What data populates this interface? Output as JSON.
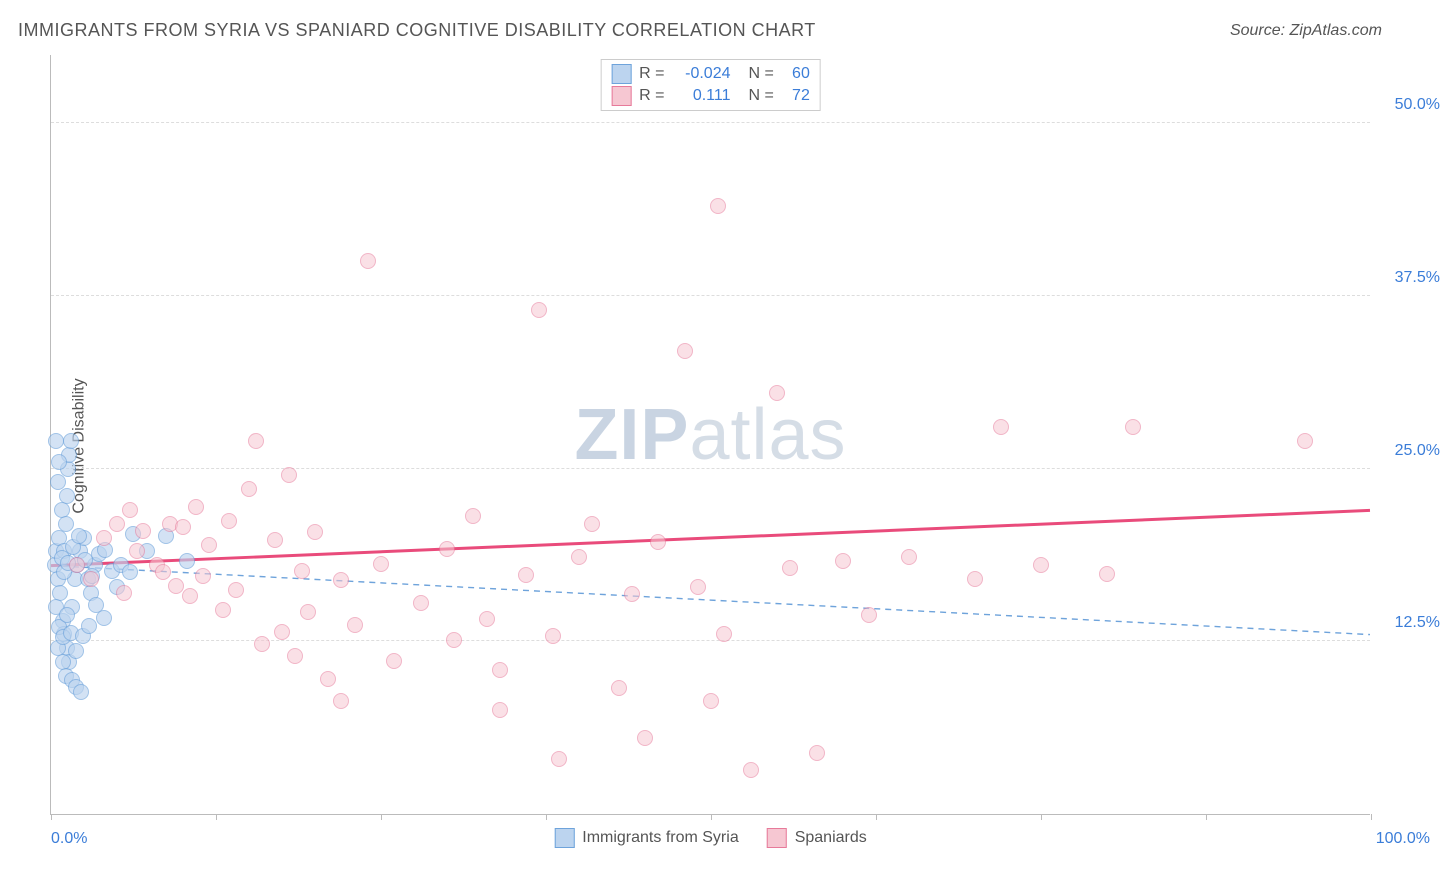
{
  "title": "IMMIGRANTS FROM SYRIA VS SPANIARD COGNITIVE DISABILITY CORRELATION CHART",
  "source": "Source: ZipAtlas.com",
  "ylabel": "Cognitive Disability",
  "watermark_bold": "ZIP",
  "watermark_rest": "atlas",
  "chart": {
    "type": "scatter",
    "xlim": [
      0,
      100
    ],
    "ylim": [
      0,
      55
    ],
    "x_min_label": "0.0%",
    "x_max_label": "100.0%",
    "x_label_color": "#3b7dd8",
    "y_ticks": [
      12.5,
      25.0,
      37.5,
      50.0
    ],
    "y_tick_labels": [
      "12.5%",
      "25.0%",
      "37.5%",
      "50.0%"
    ],
    "y_tick_color": "#3b7dd8",
    "x_tick_positions": [
      0,
      12.5,
      25,
      37.5,
      50,
      62.5,
      75,
      87.5,
      100
    ],
    "grid_color": "#dddddd",
    "background_color": "#ffffff",
    "marker_radius": 8,
    "series": [
      {
        "name": "Immigrants from Syria",
        "fill": "#bcd4ef",
        "stroke": "#6ea3db",
        "fill_opacity": 0.65,
        "R": "-0.024",
        "N": "60",
        "trend": {
          "y_at_x0": 18.0,
          "y_at_x100": 13.0,
          "width": 1.4,
          "dash": "6,5",
          "color": "#6ea3db"
        },
        "points": [
          [
            0.3,
            18
          ],
          [
            0.4,
            19
          ],
          [
            0.5,
            17
          ],
          [
            0.6,
            20
          ],
          [
            0.7,
            16
          ],
          [
            0.8,
            22
          ],
          [
            0.9,
            14
          ],
          [
            1.0,
            19
          ],
          [
            1.1,
            21
          ],
          [
            1.2,
            23
          ],
          [
            1.3,
            25
          ],
          [
            1.4,
            26
          ],
          [
            1.5,
            27
          ],
          [
            1.0,
            13
          ],
          [
            1.2,
            12
          ],
          [
            1.4,
            11
          ],
          [
            1.6,
            15
          ],
          [
            1.8,
            17
          ],
          [
            2.0,
            18
          ],
          [
            2.2,
            19
          ],
          [
            2.5,
            20
          ],
          [
            2.8,
            17
          ],
          [
            3.0,
            16
          ],
          [
            3.3,
            18
          ],
          [
            0.5,
            24
          ],
          [
            0.6,
            25.5
          ],
          [
            0.4,
            15
          ],
          [
            0.5,
            12
          ],
          [
            0.9,
            11
          ],
          [
            1.1,
            10
          ],
          [
            1.6,
            9.7
          ],
          [
            1.9,
            9.2
          ],
          [
            2.3,
            8.8
          ],
          [
            0.4,
            27
          ],
          [
            0.8,
            18.5
          ],
          [
            1.0,
            17.5
          ],
          [
            1.3,
            18.2
          ],
          [
            1.7,
            19.3
          ],
          [
            2.1,
            20.1
          ],
          [
            2.6,
            18.4
          ],
          [
            3.1,
            17.2
          ],
          [
            3.6,
            18.8
          ],
          [
            4.1,
            19.1
          ],
          [
            4.6,
            17.6
          ],
          [
            5.3,
            18.0
          ],
          [
            6.2,
            20.3
          ],
          [
            0.6,
            13.5
          ],
          [
            0.9,
            12.8
          ],
          [
            1.2,
            14.4
          ],
          [
            1.5,
            13.1
          ],
          [
            1.9,
            11.8
          ],
          [
            2.4,
            12.9
          ],
          [
            2.9,
            13.6
          ],
          [
            3.4,
            15.1
          ],
          [
            4.0,
            14.2
          ],
          [
            5.0,
            16.4
          ],
          [
            6.0,
            17.5
          ],
          [
            7.3,
            19.0
          ],
          [
            8.7,
            20.1
          ],
          [
            10.3,
            18.3
          ]
        ]
      },
      {
        "name": "Spaniards",
        "fill": "#f6c7d2",
        "stroke": "#e77a9a",
        "fill_opacity": 0.55,
        "R": "0.111",
        "N": "72",
        "trend": {
          "y_at_x0": 18.0,
          "y_at_x100": 22.0,
          "width": 3,
          "dash": null,
          "color": "#e94b7b"
        },
        "points": [
          [
            2,
            18
          ],
          [
            3,
            17
          ],
          [
            4,
            20
          ],
          [
            5,
            21
          ],
          [
            5.5,
            16
          ],
          [
            6,
            22
          ],
          [
            6.5,
            19
          ],
          [
            7,
            20.5
          ],
          [
            8,
            18
          ],
          [
            8.5,
            17.5
          ],
          [
            9,
            21
          ],
          [
            9.5,
            16.5
          ],
          [
            10,
            20.8
          ],
          [
            10.5,
            15.8
          ],
          [
            11,
            22.2
          ],
          [
            11.5,
            17.2
          ],
          [
            12,
            19.5
          ],
          [
            13,
            14.8
          ],
          [
            13.5,
            21.2
          ],
          [
            14,
            16.2
          ],
          [
            15,
            23.5
          ],
          [
            15.5,
            27
          ],
          [
            16,
            12.3
          ],
          [
            17,
            19.8
          ],
          [
            17.5,
            13.2
          ],
          [
            18,
            24.5
          ],
          [
            18.5,
            11.4
          ],
          [
            19,
            17.6
          ],
          [
            19.5,
            14.6
          ],
          [
            20,
            20.4
          ],
          [
            21,
            9.8
          ],
          [
            22,
            16.9
          ],
          [
            23,
            13.7
          ],
          [
            24,
            40
          ],
          [
            25,
            18.1
          ],
          [
            26,
            11.1
          ],
          [
            28,
            15.3
          ],
          [
            30,
            19.2
          ],
          [
            30.5,
            12.6
          ],
          [
            32,
            21.6
          ],
          [
            33,
            14.1
          ],
          [
            34,
            10.4
          ],
          [
            36,
            17.3
          ],
          [
            37,
            36.5
          ],
          [
            38,
            12.9
          ],
          [
            38.5,
            4.0
          ],
          [
            40,
            18.6
          ],
          [
            41,
            21.0
          ],
          [
            43,
            9.1
          ],
          [
            44,
            15.9
          ],
          [
            45,
            5.5
          ],
          [
            46,
            19.7
          ],
          [
            48,
            33.5
          ],
          [
            49,
            16.4
          ],
          [
            50,
            8.2
          ],
          [
            50.5,
            44
          ],
          [
            51,
            13.0
          ],
          [
            53,
            3.2
          ],
          [
            55,
            30.5
          ],
          [
            56,
            17.8
          ],
          [
            58,
            4.4
          ],
          [
            60,
            18.3
          ],
          [
            62,
            14.4
          ],
          [
            65,
            18.6
          ],
          [
            70,
            17.0
          ],
          [
            72,
            28
          ],
          [
            75,
            18.0
          ],
          [
            80,
            17.4
          ],
          [
            82,
            28
          ],
          [
            95,
            27
          ],
          [
            34,
            7.5
          ],
          [
            22,
            8.2
          ]
        ]
      }
    ],
    "legend_top": {
      "r_label": "R =",
      "n_label": "N ="
    },
    "legend_bottom_labels": [
      "Immigrants from Syria",
      "Spaniards"
    ]
  }
}
